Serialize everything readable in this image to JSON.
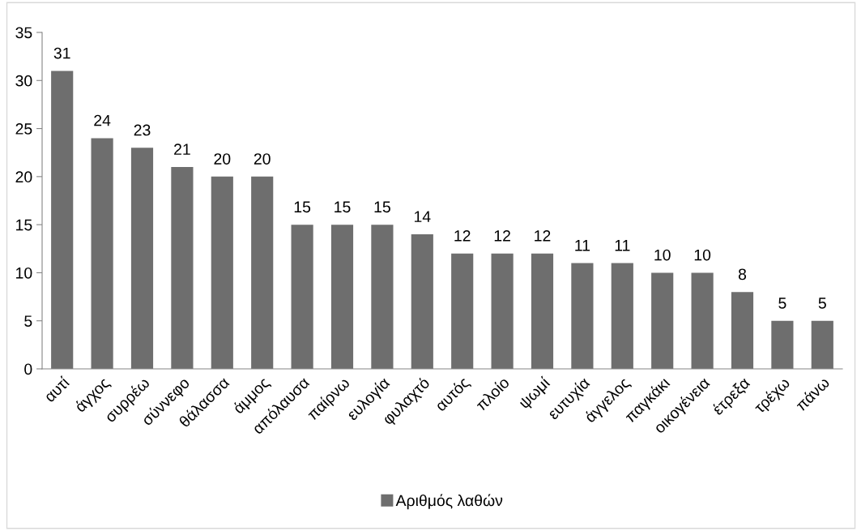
{
  "chart_data": {
    "type": "bar",
    "categories": [
      "αυτί",
      "άγχος",
      "συρρέω",
      "σύννεφο",
      "θάλασσα",
      "άμμος",
      "απόλαυσα",
      "παίρνω",
      "ευλογία",
      "φυλαχτό",
      "αυτός",
      "πλοίο",
      "ψωμί",
      "ευτυχία",
      "άγγελος",
      "παγκάκι",
      "οικογένεια",
      "έτρεξα",
      "τρέχω",
      "πάνω"
    ],
    "series": [
      {
        "name": "Αριθμός λαθών",
        "color": "#6e6e6e",
        "values": [
          31,
          24,
          23,
          21,
          20,
          20,
          15,
          15,
          15,
          14,
          12,
          12,
          12,
          11,
          11,
          10,
          10,
          8,
          5,
          5
        ]
      }
    ],
    "ylim": [
      0,
      35
    ],
    "yticks": [
      0,
      5,
      10,
      15,
      20,
      25,
      30,
      35
    ],
    "data_labels": true,
    "grid": false,
    "legend": "bottom"
  }
}
